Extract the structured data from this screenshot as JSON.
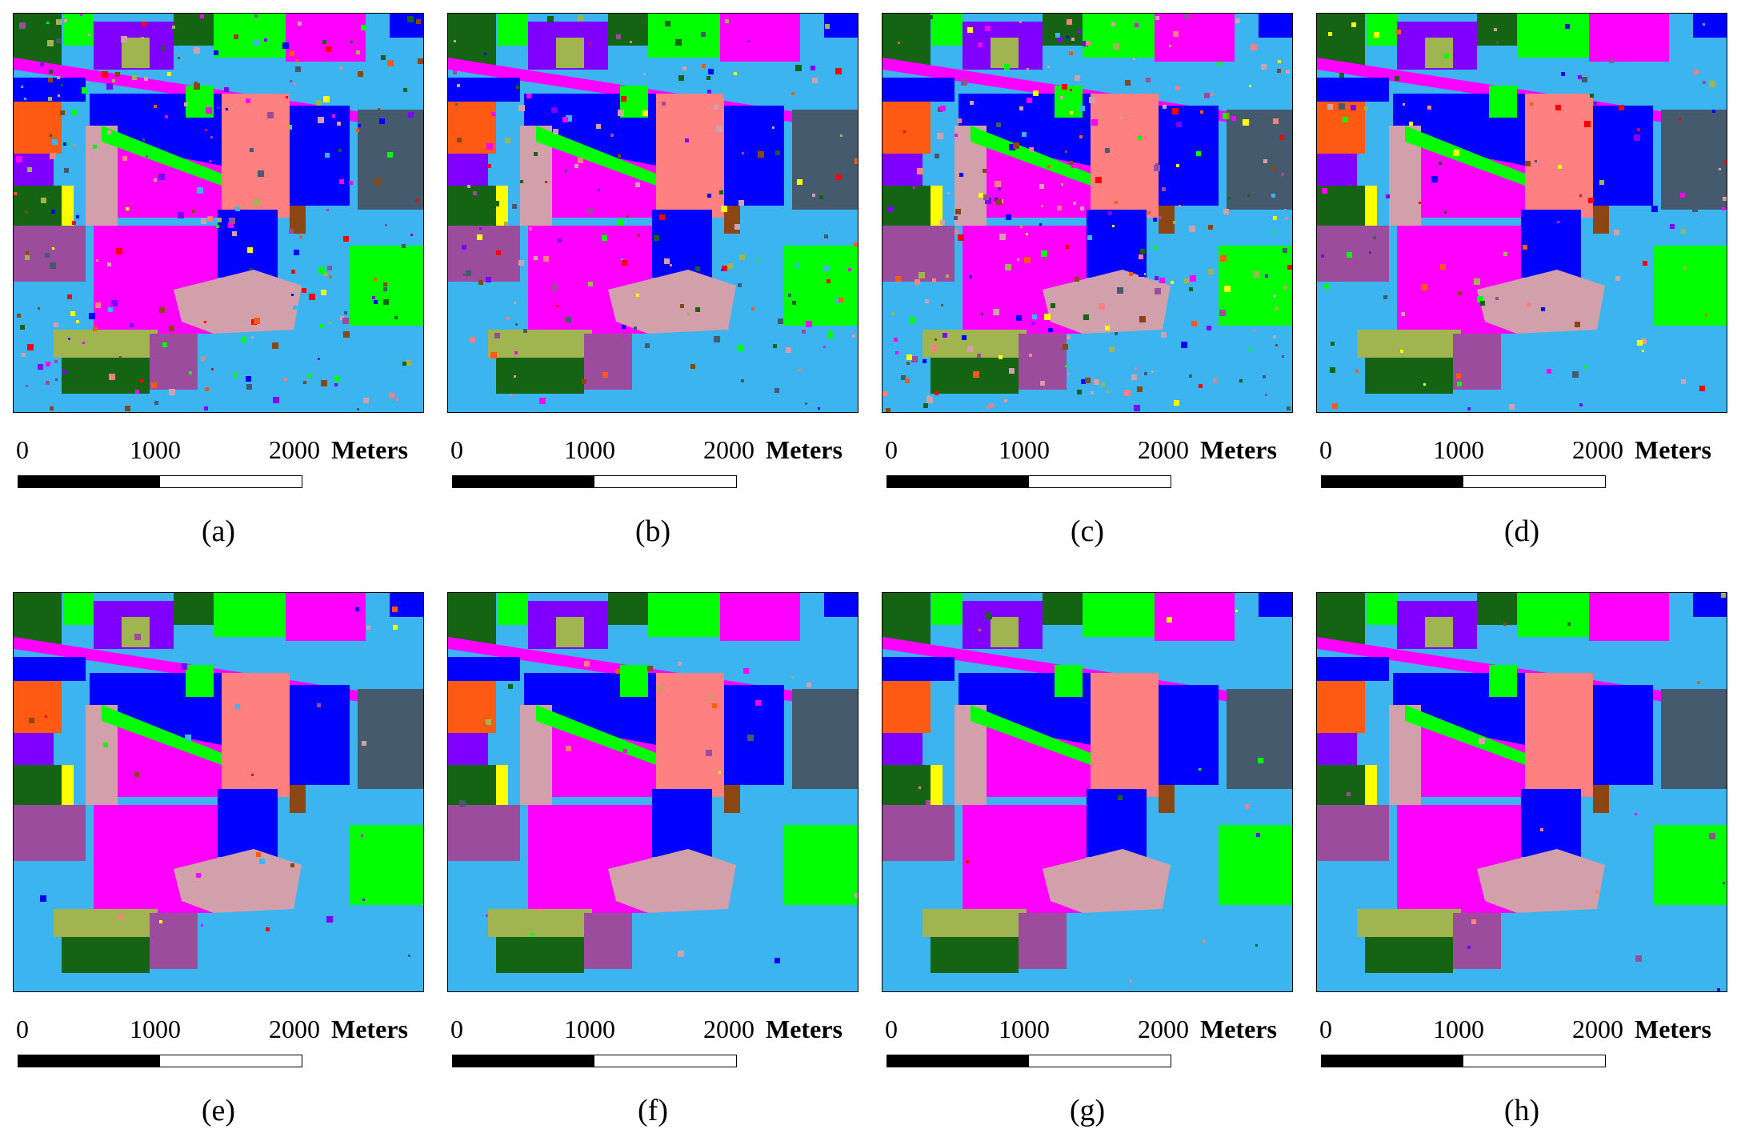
{
  "legend_colors": {
    "corn_notill": "#0000ff",
    "corn_mintill": "#ff8080",
    "corn": "#a0b450",
    "grass_pasture": "#9c4c9c",
    "grass_trees": "#3cb4f0",
    "grass_pasture_mowed": "#ffff00",
    "hay_windrowed": "#146414",
    "oats": "#8c4614",
    "soybean_notill": "#00ff00",
    "soybean_mintill": "#ff00ff",
    "soybean_clean": "#8000ff",
    "wheat": "#ff5a14",
    "woods": "#d2a0aa",
    "buildings": "#465a6e",
    "stone_steel": "#d2a0aa",
    "alfalfa": "#ff0000"
  },
  "panels": [
    {
      "caption": "(a)",
      "scale": {
        "zero": "0",
        "mid": "1000",
        "end": "2000",
        "unit": "Meters"
      }
    },
    {
      "caption": "(b)",
      "scale": {
        "zero": "0",
        "mid": "1000",
        "end": "2000",
        "unit": "Meters"
      }
    },
    {
      "caption": "(c)",
      "scale": {
        "zero": "0",
        "mid": "1000",
        "end": "2000",
        "unit": "Meters"
      }
    },
    {
      "caption": "(d)",
      "scale": {
        "zero": "0",
        "mid": "1000",
        "end": "2000",
        "unit": "Meters"
      }
    },
    {
      "caption": "(e)",
      "scale": {
        "zero": "0",
        "mid": "1000",
        "end": "2000",
        "unit": "Meters"
      }
    },
    {
      "caption": "(f)",
      "scale": {
        "zero": "0",
        "mid": "1000",
        "end": "2000",
        "unit": "Meters"
      }
    },
    {
      "caption": "(g)",
      "scale": {
        "zero": "0",
        "mid": "1000",
        "end": "2000",
        "unit": "Meters"
      }
    },
    {
      "caption": "(h)",
      "scale": {
        "zero": "0",
        "mid": "1000",
        "end": "2000",
        "unit": "Meters"
      }
    }
  ]
}
